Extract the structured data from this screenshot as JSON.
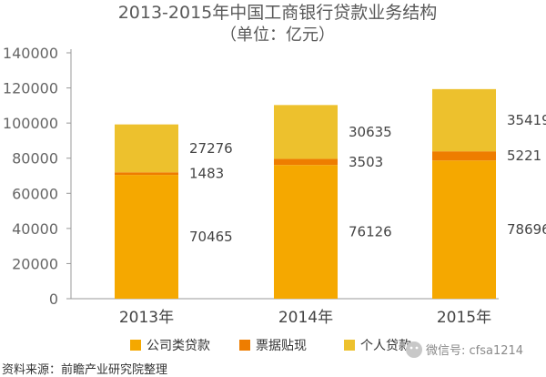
{
  "chart_data": {
    "type": "bar",
    "stacked": true,
    "title": "2013-2015年中国工商银行贷款业务结构",
    "subtitle": "（单位：亿元）",
    "categories": [
      "2013年",
      "2014年",
      "2015年"
    ],
    "series": [
      {
        "name": "公司类贷款",
        "values": [
          70465,
          76126,
          78696
        ],
        "color": "#F5A800"
      },
      {
        "name": "票据贴现",
        "values": [
          1483,
          3503,
          5221
        ],
        "color": "#EE7D00"
      },
      {
        "name": "个人贷款",
        "values": [
          27276,
          30635,
          35419
        ],
        "color": "#EDC12D"
      }
    ],
    "ylim": [
      0,
      140000
    ],
    "yticks": [
      0,
      20000,
      40000,
      60000,
      80000,
      100000,
      120000,
      140000
    ],
    "ytick_labels": [
      "0",
      "20000",
      "40000",
      "60000",
      "80000",
      "100000",
      "120000",
      "140000"
    ],
    "grid": false,
    "legend_position": "bottom"
  },
  "source": "资料来源：前瞻产业研究院整理",
  "watermark": "微信号: cfsa1214"
}
